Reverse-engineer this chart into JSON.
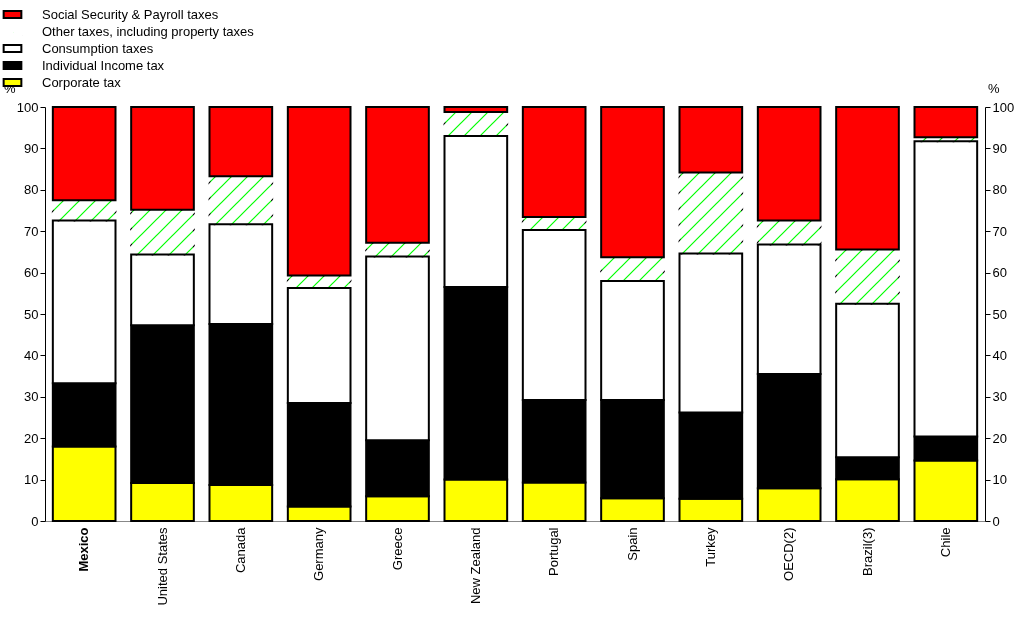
{
  "chart_data": {
    "type": "bar",
    "stacked": true,
    "ylabel": "%",
    "y2label": "%",
    "legend": "top left",
    "categories": [
      "Mexico",
      "United States",
      "Canada",
      "Germany",
      "Greece",
      "New Zealand",
      "Portugal",
      "Spain",
      "Turkey",
      "OECD(2)",
      "Brazil(3)",
      "Chile"
    ],
    "series": [
      {
        "name": "Corporate tax",
        "color": "#ffff00",
        "values": [
          18,
          9.2,
          8.7,
          3.5,
          6,
          10,
          9.3,
          5.5,
          5.4,
          7.9,
          10.1,
          14.6
        ]
      },
      {
        "name": "Individual Income tax",
        "color": "#000000",
        "values": [
          15.3,
          38.1,
          38.9,
          25,
          13.5,
          46.5,
          19.9,
          23.7,
          20.8,
          27.6,
          5.3,
          5.8
        ]
      },
      {
        "name": "Consumption taxes",
        "color": "#ffffff",
        "values": [
          39.3,
          17.1,
          24.1,
          27.8,
          44.4,
          36.5,
          41.1,
          28.8,
          38.4,
          31.3,
          37.1,
          71.3
        ]
      },
      {
        "name": "Other taxes, including property taxes",
        "color": "#00ff00",
        "values": [
          4.9,
          10.8,
          11.6,
          3,
          3.3,
          5.8,
          3.1,
          5.7,
          19.6,
          5.8,
          13.1,
          1
        ]
      },
      {
        "name": "Social Security & Payroll taxes",
        "color": "#ff0000",
        "values": [
          22.5,
          24.8,
          16.7,
          40.7,
          32.8,
          1.2,
          26.6,
          36.3,
          15.8,
          27.4,
          34.4,
          7.3
        ]
      }
    ],
    "ylim": [
      0,
      100
    ],
    "yticks": [
      0,
      10,
      20,
      30,
      40,
      50,
      60,
      70,
      80,
      90,
      100
    ],
    "y2lim": [
      0,
      100
    ],
    "y2ticks": [
      0,
      10,
      20,
      30,
      40,
      50,
      60,
      70,
      80,
      90,
      100
    ]
  }
}
